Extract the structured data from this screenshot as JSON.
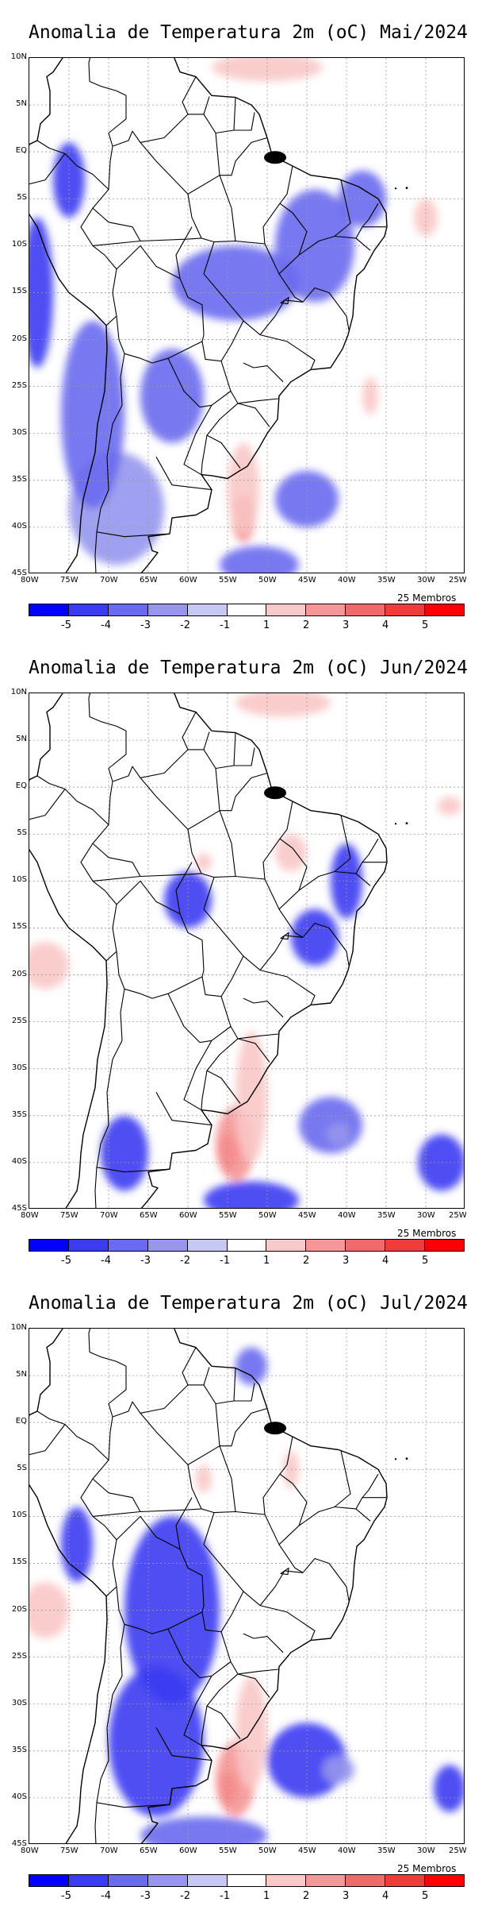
{
  "x_ticks": [
    "80W",
    "75W",
    "70W",
    "65W",
    "60W",
    "55W",
    "50W",
    "45W",
    "40W",
    "35W",
    "30W",
    "25W"
  ],
  "y_ticks": [
    "10N",
    "5N",
    "EQ",
    "5S",
    "10S",
    "15S",
    "20S",
    "25S",
    "30S",
    "35S",
    "40S",
    "45S"
  ],
  "colorbar": {
    "labels": [
      "-5",
      "-4",
      "-3",
      "-2",
      "-1",
      "1",
      "2",
      "3",
      "4",
      "5"
    ],
    "colors": [
      "#0000ff",
      "#3b3bf2",
      "#6a6af0",
      "#9696ee",
      "#c8c8f6",
      "#ffffff",
      "#f9c8c8",
      "#f69696",
      "#f06a6a",
      "#f03b3b",
      "#ff0000"
    ]
  },
  "panels": [
    {
      "title": "Anomalia de Temperatura 2m (oC) Mai/2024",
      "members_label": "25 Membros",
      "anomaly_regions": [
        {
          "lon": -69,
          "lat": -38,
          "rx": 6,
          "ry": 6,
          "level": 3
        },
        {
          "lon": -72,
          "lat": -28,
          "rx": 4,
          "ry": 10,
          "level": 2
        },
        {
          "lon": -62,
          "lat": -26,
          "rx": 4,
          "ry": 5,
          "level": 2
        },
        {
          "lon": -54,
          "lat": -14,
          "rx": 8,
          "ry": 4,
          "level": 2
        },
        {
          "lon": -44,
          "lat": -10,
          "rx": 5,
          "ry": 6,
          "level": 2
        },
        {
          "lon": -38,
          "lat": -5,
          "rx": 3,
          "ry": 3,
          "level": 2
        },
        {
          "lon": -45,
          "lat": -37,
          "rx": 4,
          "ry": 3,
          "level": 2
        },
        {
          "lon": -51,
          "lat": -44,
          "rx": 5,
          "ry": 2,
          "level": 2
        },
        {
          "lon": -79,
          "lat": -15,
          "rx": 2,
          "ry": 8,
          "level": 1
        },
        {
          "lon": -75,
          "lat": -3,
          "rx": 2,
          "ry": 4,
          "level": 1
        },
        {
          "lon": -50,
          "lat": 9,
          "rx": 7,
          "ry": 1.5,
          "level": 6
        },
        {
          "lon": -53,
          "lat": -39,
          "rx": 1.5,
          "ry": 2.5,
          "level": 8
        },
        {
          "lon": -53,
          "lat": -36,
          "rx": 2,
          "ry": 5,
          "level": 6
        },
        {
          "lon": -37,
          "lat": -26,
          "rx": 1,
          "ry": 2,
          "level": 6
        },
        {
          "lon": -30,
          "lat": -7,
          "rx": 1.5,
          "ry": 2,
          "level": 6
        }
      ]
    },
    {
      "title": "Anomalia de Temperatura 2m (oC) Jun/2024",
      "members_label": "25 Membros",
      "anomaly_regions": [
        {
          "lon": -42,
          "lat": -36,
          "rx": 4,
          "ry": 3,
          "level": 2
        },
        {
          "lon": -41,
          "lat": -37,
          "rx": 1.5,
          "ry": 1.2,
          "level": 3
        },
        {
          "lon": -28,
          "lat": -40,
          "rx": 3,
          "ry": 3,
          "level": 1
        },
        {
          "lon": -52,
          "lat": -44,
          "rx": 6,
          "ry": 2,
          "level": 1
        },
        {
          "lon": -60,
          "lat": -12,
          "rx": 3,
          "ry": 3,
          "level": 1
        },
        {
          "lon": -44,
          "lat": -16,
          "rx": 3,
          "ry": 3,
          "level": 1
        },
        {
          "lon": -40,
          "lat": -10,
          "rx": 2,
          "ry": 4,
          "level": 1
        },
        {
          "lon": -68,
          "lat": -39,
          "rx": 3,
          "ry": 4,
          "level": 1
        },
        {
          "lon": -48,
          "lat": 9,
          "rx": 6,
          "ry": 1.5,
          "level": 6
        },
        {
          "lon": -78,
          "lat": -19,
          "rx": 3,
          "ry": 2.5,
          "level": 6
        },
        {
          "lon": -55,
          "lat": -39,
          "rx": 1.3,
          "ry": 2,
          "level": 9
        },
        {
          "lon": -54,
          "lat": -38,
          "rx": 2.5,
          "ry": 4,
          "level": 7
        },
        {
          "lon": -52,
          "lat": -33,
          "rx": 2,
          "ry": 7,
          "level": 6
        },
        {
          "lon": -47,
          "lat": -7,
          "rx": 2,
          "ry": 2,
          "level": 6
        },
        {
          "lon": -58,
          "lat": -8,
          "rx": 1,
          "ry": 1,
          "level": 6
        },
        {
          "lon": -27,
          "lat": -2,
          "rx": 1.5,
          "ry": 1,
          "level": 6
        }
      ]
    },
    {
      "title": "Anomalia de Temperatura 2m (oC) Jul/2024",
      "members_label": "25 Membros",
      "anomaly_regions": [
        {
          "lon": -52,
          "lat": 6,
          "rx": 2,
          "ry": 2,
          "level": 2
        },
        {
          "lon": -62,
          "lat": -20,
          "rx": 6,
          "ry": 10,
          "level": 1
        },
        {
          "lon": -64,
          "lat": -34,
          "rx": 6,
          "ry": 8,
          "level": 1
        },
        {
          "lon": -58,
          "lat": -44,
          "rx": 8,
          "ry": 2,
          "level": 2
        },
        {
          "lon": -45,
          "lat": -36,
          "rx": 5,
          "ry": 4,
          "level": 1
        },
        {
          "lon": -41,
          "lat": -37,
          "rx": 2,
          "ry": 1.5,
          "level": 3
        },
        {
          "lon": -74,
          "lat": -13,
          "rx": 2,
          "ry": 4,
          "level": 1
        },
        {
          "lon": -27,
          "lat": -39,
          "rx": 2,
          "ry": 2.5,
          "level": 1
        },
        {
          "lon": -78,
          "lat": -20,
          "rx": 3,
          "ry": 3,
          "level": 6
        },
        {
          "lon": -55,
          "lat": -39,
          "rx": 1.3,
          "ry": 1.8,
          "level": 9
        },
        {
          "lon": -54,
          "lat": -38,
          "rx": 2.5,
          "ry": 4,
          "level": 7
        },
        {
          "lon": -52,
          "lat": -33,
          "rx": 2,
          "ry": 6,
          "level": 6
        },
        {
          "lon": -58,
          "lat": -6,
          "rx": 1,
          "ry": 1.5,
          "level": 6
        },
        {
          "lon": -47,
          "lat": -5,
          "rx": 1,
          "ry": 2,
          "level": 6
        }
      ]
    }
  ]
}
